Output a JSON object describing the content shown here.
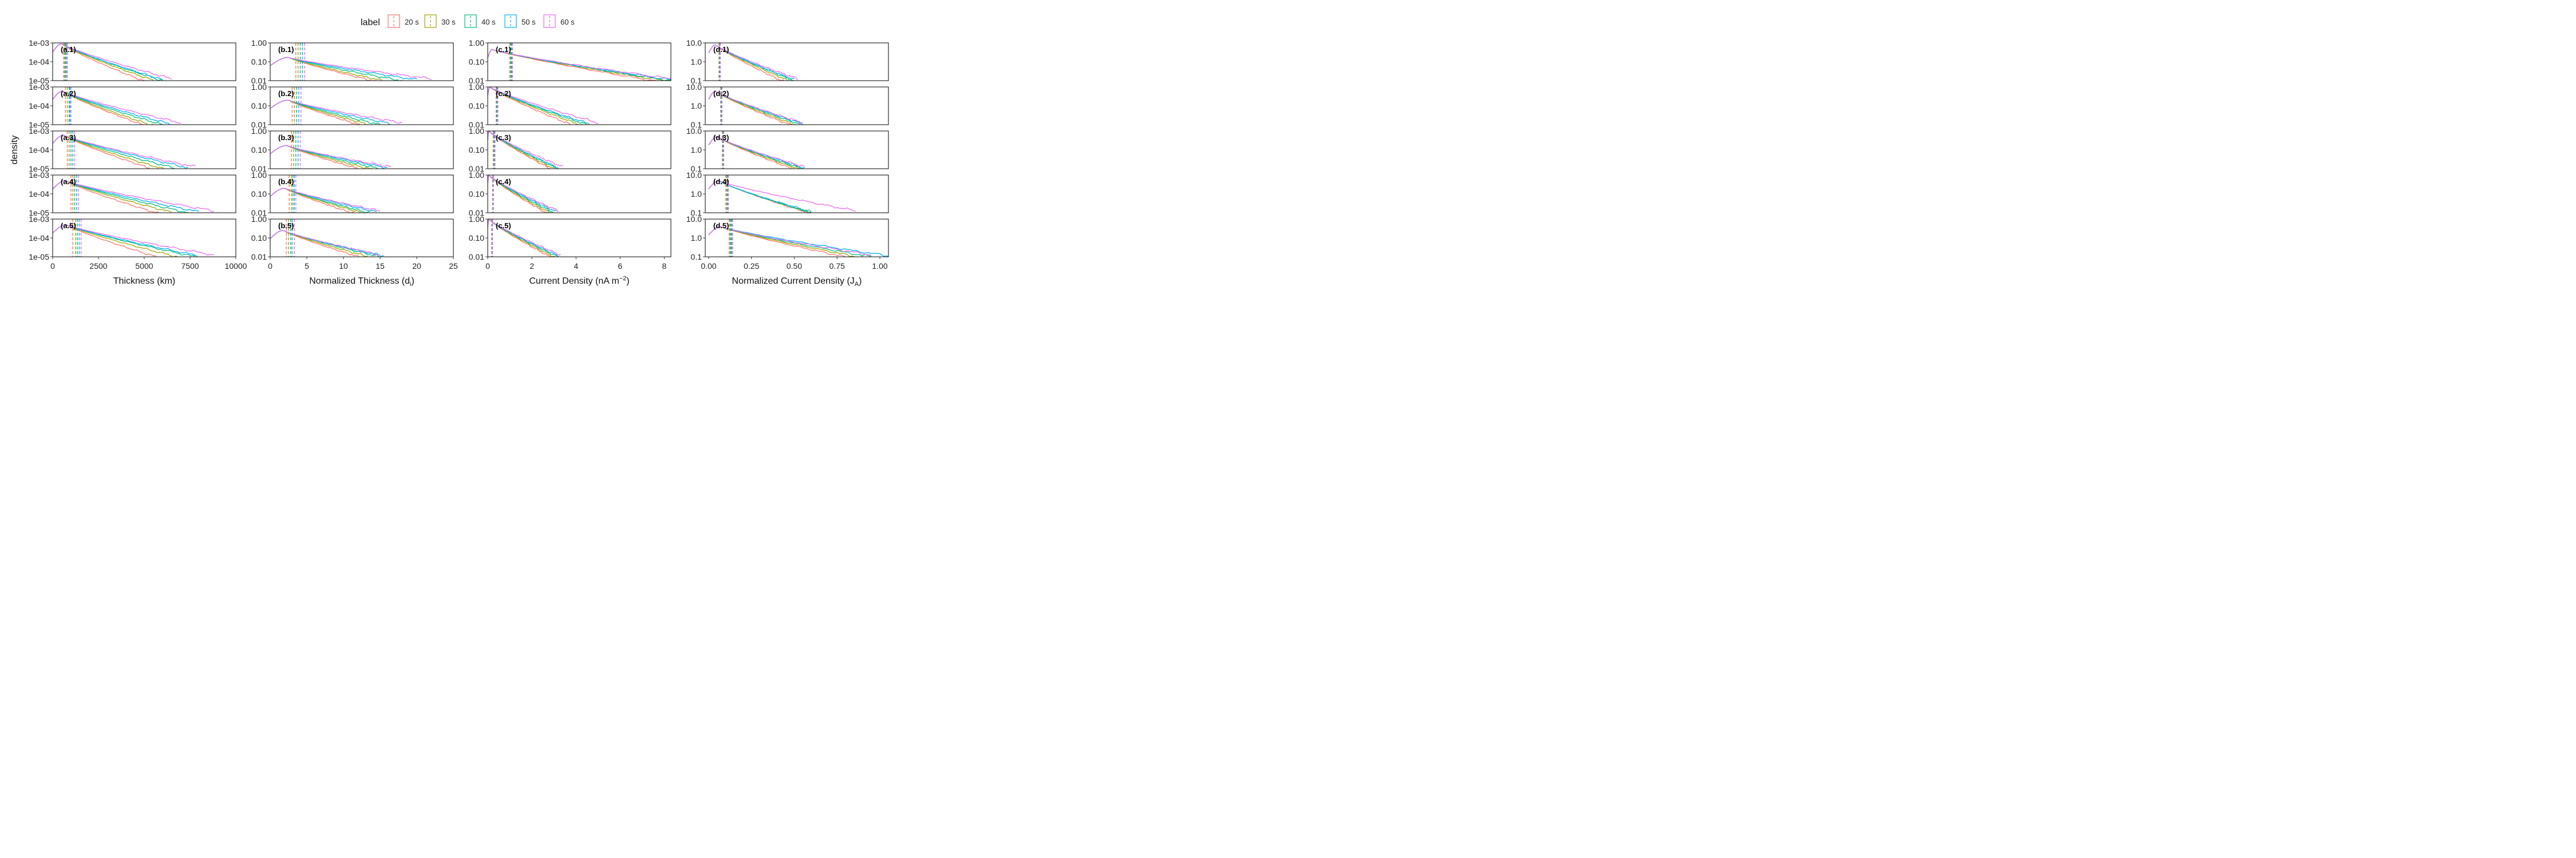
{
  "legend": {
    "title": "label",
    "entries": [
      {
        "name": "20 s",
        "color": "#F8766D"
      },
      {
        "name": "30 s",
        "color": "#A3A500"
      },
      {
        "name": "40 s",
        "color": "#00BF7D"
      },
      {
        "name": "50 s",
        "color": "#00B0F6"
      },
      {
        "name": "60 s",
        "color": "#E76BF3"
      }
    ]
  },
  "y_axis_title": "density",
  "chart_data": [
    {
      "type": "line",
      "column": "a",
      "xlabel": "Thickness (km)",
      "xlim": [
        0,
        10000
      ],
      "xticks": [
        0,
        2500,
        5000,
        7500,
        10000
      ],
      "xtick_labels": [
        "0",
        "2500",
        "5000",
        "7500",
        "10000"
      ],
      "yscale": "log",
      "ylim": [
        1e-05,
        0.001
      ],
      "yticks": [
        1e-05,
        0.0001,
        0.001
      ],
      "ytick_labels": [
        "1e-05",
        "1e-04",
        "1e-03"
      ],
      "panels": [
        {
          "label": "(a.1)",
          "peak_x": 500,
          "peak_y": 0.0009,
          "means": [
            600,
            650,
            700,
            750,
            800
          ],
          "ends": [
            5200,
            5700,
            6000,
            6000,
            6500
          ]
        },
        {
          "label": "(a.2)",
          "peak_x": 550,
          "peak_y": 0.0006,
          "means": [
            700,
            800,
            900,
            950,
            1000
          ],
          "ends": [
            5200,
            5500,
            6000,
            6400,
            7000
          ]
        },
        {
          "label": "(a.3)",
          "peak_x": 600,
          "peak_y": 0.0006,
          "means": [
            800,
            900,
            1000,
            1100,
            1200
          ],
          "ends": [
            5700,
            6200,
            6800,
            7400,
            7800
          ]
        },
        {
          "label": "(a.4)",
          "peak_x": 700,
          "peak_y": 0.0005,
          "means": [
            1000,
            1100,
            1200,
            1300,
            1400
          ],
          "ends": [
            6000,
            6800,
            7400,
            8000,
            8800
          ]
        },
        {
          "label": "(a.5)",
          "peak_x": 750,
          "peak_y": 0.0005,
          "means": [
            1100,
            1250,
            1350,
            1450,
            1550
          ],
          "ends": [
            6000,
            7000,
            7800,
            8000,
            8800
          ]
        }
      ]
    },
    {
      "type": "line",
      "column": "b",
      "xlabel": "Normalized Thickness (d",
      "xlabel_sub": "i",
      "xlabel_end": ")",
      "xlim": [
        0,
        25
      ],
      "xticks": [
        0,
        5,
        10,
        15,
        20,
        25
      ],
      "xtick_labels": [
        "0",
        "5",
        "10",
        "15",
        "20",
        "25"
      ],
      "yscale": "log",
      "ylim": [
        0.01,
        1
      ],
      "yticks": [
        0.01,
        0.1,
        1
      ],
      "ytick_labels": [
        "0.01",
        "0.10",
        "1.00"
      ],
      "panels": [
        {
          "label": "(b.1)",
          "peak_x": 2.5,
          "peak_y": 0.17,
          "means": [
            3.5,
            3.8,
            4.1,
            4.4,
            4.7
          ],
          "ends": [
            15.0,
            16.0,
            18.0,
            20.0,
            22.0
          ]
        },
        {
          "label": "(b.2)",
          "peak_x": 2.5,
          "peak_y": 0.2,
          "means": [
            3.0,
            3.3,
            3.6,
            3.9,
            4.2
          ],
          "ends": [
            13.0,
            14.0,
            15.0,
            16.5,
            18.0
          ]
        },
        {
          "label": "(b.3)",
          "peak_x": 2.3,
          "peak_y": 0.17,
          "means": [
            2.9,
            3.2,
            3.5,
            3.8,
            4.1
          ],
          "ends": [
            13.0,
            14.0,
            15.0,
            16.0,
            16.5
          ]
        },
        {
          "label": "(b.4)",
          "peak_x": 2.0,
          "peak_y": 0.2,
          "means": [
            2.6,
            2.9,
            3.1,
            3.3,
            3.5
          ],
          "ends": [
            12.0,
            13.0,
            13.5,
            14.5,
            15.0
          ]
        },
        {
          "label": "(b.5)",
          "peak_x": 1.8,
          "peak_y": 0.25,
          "means": [
            2.2,
            2.5,
            2.8,
            3.0,
            3.3
          ],
          "ends": [
            13.0,
            14.0,
            15.0,
            15.5,
            15.0
          ]
        }
      ]
    },
    {
      "type": "line",
      "column": "c",
      "xlabel": "Current Density (nA m",
      "xlabel_sup": "−2",
      "xlabel_end": ")",
      "xlim": [
        0,
        8.3
      ],
      "xticks": [
        0,
        2,
        4,
        6,
        8
      ],
      "xtick_labels": [
        "0",
        "2",
        "4",
        "6",
        "8"
      ],
      "yscale": "log",
      "ylim": [
        0.01,
        1
      ],
      "yticks": [
        0.01,
        0.1,
        1
      ],
      "ytick_labels": [
        "0.01",
        "0.10",
        "1.00"
      ],
      "panels": [
        {
          "label": "(c.1)",
          "peak_x": 0.2,
          "peak_y": 0.45,
          "means": [
            1.0,
            1.03,
            1.06,
            1.09,
            1.12
          ],
          "ends": [
            8.0,
            8.3,
            8.3,
            8.3,
            8.3
          ]
        },
        {
          "label": "(c.2)",
          "peak_x": 0.1,
          "peak_y": 1.0,
          "means": [
            0.38,
            0.4,
            0.42,
            0.44,
            0.46
          ],
          "ends": [
            4.0,
            4.3,
            4.5,
            4.6,
            5.0
          ]
        },
        {
          "label": "(c.3)",
          "peak_x": 0.05,
          "peak_y": 1.0,
          "means": [
            0.25,
            0.27,
            0.29,
            0.31,
            0.33
          ],
          "ends": [
            3.0,
            3.1,
            3.2,
            3.2,
            3.4
          ]
        },
        {
          "label": "(c.4)",
          "peak_x": 0.05,
          "peak_y": 1.0,
          "means": [
            0.22,
            0.23,
            0.24,
            0.25,
            0.26
          ],
          "ends": [
            2.8,
            2.9,
            3.0,
            3.1,
            3.2
          ]
        },
        {
          "label": "(c.5)",
          "peak_x": 0.05,
          "peak_y": 1.0,
          "means": [
            0.18,
            0.19,
            0.2,
            0.21,
            0.22
          ],
          "ends": [
            3.0,
            3.1,
            3.2,
            3.2,
            3.3
          ]
        }
      ]
    },
    {
      "type": "line",
      "column": "d",
      "xlabel": "Normalized Current Density (J",
      "xlabel_sub": "A",
      "xlabel_end": ")",
      "xlim": [
        -0.02,
        1.05
      ],
      "xticks": [
        0,
        0.25,
        0.5,
        0.75,
        1.0
      ],
      "xtick_labels": [
        "0.00",
        "0.25",
        "0.50",
        "0.75",
        "1.00"
      ],
      "yscale": "log",
      "ylim": [
        0.1,
        10
      ],
      "yticks": [
        0.1,
        1,
        10
      ],
      "ytick_labels": [
        "0.1",
        "1.0",
        "10.0"
      ],
      "panels": [
        {
          "label": "(d.1)",
          "peak_x": 0.04,
          "peak_y": 8.0,
          "means": [
            0.06,
            0.062,
            0.064,
            0.066,
            0.068
          ],
          "ends": [
            0.45,
            0.48,
            0.5,
            0.5,
            0.52
          ]
        },
        {
          "label": "(d.2)",
          "peak_x": 0.04,
          "peak_y": 6.0,
          "means": [
            0.07,
            0.072,
            0.074,
            0.076,
            0.078
          ],
          "ends": [
            0.5,
            0.52,
            0.54,
            0.55,
            0.55
          ]
        },
        {
          "label": "(d.3)",
          "peak_x": 0.05,
          "peak_y": 5.0,
          "means": [
            0.08,
            0.082,
            0.084,
            0.086,
            0.088
          ],
          "ends": [
            0.52,
            0.54,
            0.55,
            0.56,
            0.56
          ]
        },
        {
          "label": "(d.4)",
          "peak_x": 0.06,
          "peak_y": 5.0,
          "means": [
            0.1,
            0.105,
            0.11,
            0.112,
            0.115
          ],
          "ends": [
            0.62,
            0.62,
            0.6,
            0.6,
            0.86
          ]
        },
        {
          "label": "(d.5)",
          "peak_x": 0.07,
          "peak_y": 4.0,
          "means": [
            0.12,
            0.125,
            0.13,
            0.135,
            0.14
          ],
          "ends": [
            0.85,
            0.9,
            0.95,
            1.05,
            0.95
          ]
        }
      ]
    }
  ]
}
